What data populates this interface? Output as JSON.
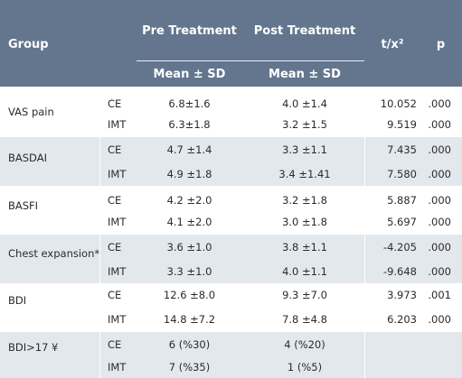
{
  "header": {
    "group": "Group",
    "pre": "Pre Treatment",
    "post": "Post Treatment",
    "t": "t/x²",
    "p": "p",
    "mean_sd_pre": "Mean ± SD",
    "mean_sd_post": "Mean ± SD"
  },
  "groups": [
    {
      "name": "VAS pain",
      "rows": [
        {
          "sub": "CE",
          "pre": "6.8±1.6",
          "post": "4.0 ±1.4",
          "t": "10.052",
          "p": ".000"
        },
        {
          "sub": "IMT",
          "pre": "6.3±1.8",
          "post": "3.2 ±1.5",
          "t": "9.519",
          "p": ".000"
        }
      ]
    },
    {
      "name": "BASDAI",
      "rows": [
        {
          "sub": "CE",
          "pre": "4.7 ±1.4",
          "post": "3.3 ±1.1",
          "t": "7.435",
          "p": ".000"
        },
        {
          "sub": "IMT",
          "pre": "4.9 ±1.8",
          "post": "3.4 ±1.41",
          "t": "7.580",
          "p": ".000"
        }
      ]
    },
    {
      "name": "BASFI",
      "rows": [
        {
          "sub": "CE",
          "pre": "4.2 ±2.0",
          "post": "3.2 ±1.8",
          "t": "5.887",
          "p": ".000"
        },
        {
          "sub": "IMT",
          "pre": "4.1 ±2.0",
          "post": "3.0 ±1.8",
          "t": "5.697",
          "p": ".000"
        }
      ]
    },
    {
      "name": "Chest expansion*",
      "rows": [
        {
          "sub": "CE",
          "pre": "3.6 ±1.0",
          "post": "3.8 ±1.1",
          "t": "-4.205",
          "p": ".000"
        },
        {
          "sub": "IMT",
          "pre": "3.3 ±1.0",
          "post": "4.0 ±1.1",
          "t": "-9.648",
          "p": ".000"
        }
      ]
    },
    {
      "name": "BDI",
      "rows": [
        {
          "sub": "CE",
          "pre": "12.6 ±8.0",
          "post": "9.3 ±7.0",
          "t": "3.973",
          "p": ".001"
        },
        {
          "sub": "IMT",
          "pre": "14.8 ±7.2",
          "post": "7.8 ±4.8",
          "t": "6.203",
          "p": ".000"
        }
      ]
    },
    {
      "name": "BDI>17 ¥",
      "rows": [
        {
          "sub": "CE",
          "pre": "6 (%30)",
          "post": "4 (%20)",
          "t": "",
          "p": ""
        },
        {
          "sub": "IMT",
          "pre": "7 (%35)",
          "post": "1 (%5)",
          "t": "",
          "p": ""
        }
      ]
    }
  ]
}
